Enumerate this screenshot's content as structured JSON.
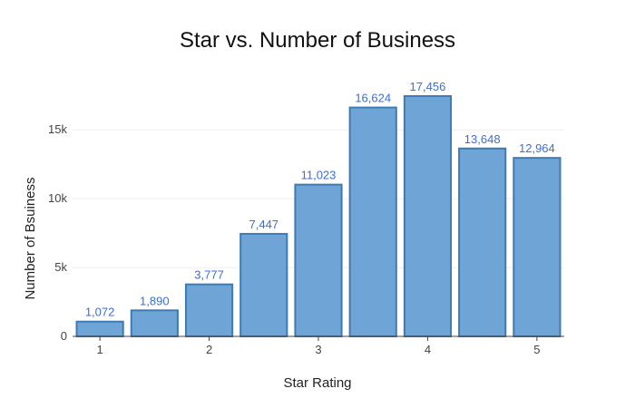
{
  "chart_data": {
    "type": "bar",
    "title": "Star vs. Number of Business",
    "xlabel": "Star Rating",
    "ylabel": "Number of Bsuiness",
    "x": [
      1,
      1.5,
      2,
      2.5,
      3,
      3.5,
      4,
      4.5,
      5
    ],
    "values": [
      1072,
      1890,
      3777,
      7447,
      11023,
      16624,
      17456,
      13648,
      12964
    ],
    "value_labels": [
      "1,072",
      "1,890",
      "3,777",
      "7,447",
      "11,023",
      "16,624",
      "17,456",
      "13,648",
      "12,964"
    ],
    "xticks": [
      1,
      2,
      3,
      4,
      5
    ],
    "xtick_labels": [
      "1",
      "2",
      "3",
      "4",
      "5"
    ],
    "xlim": [
      0.75,
      5.25
    ],
    "ylim": [
      0,
      18375
    ],
    "yticks": [
      0,
      5000,
      10000,
      15000
    ],
    "ytick_labels": [
      "0",
      "5k",
      "10k",
      "15k"
    ],
    "grid": true,
    "bar_color": "#6fa5d6",
    "bar_edge_color": "#3e7bb5",
    "label_color": "#3b6fd6"
  }
}
